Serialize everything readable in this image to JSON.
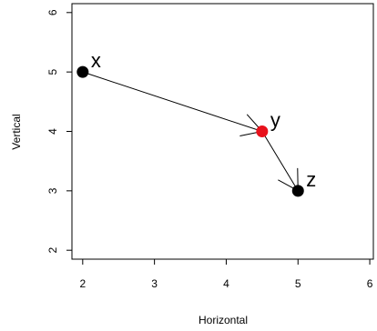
{
  "chart_data": {
    "type": "scatter",
    "xlabel": "Horizontal",
    "ylabel": "Vertical",
    "xlim": [
      1.85,
      6.05
    ],
    "ylim": [
      1.85,
      6.15
    ],
    "xticks": [
      2,
      3,
      4,
      5,
      6
    ],
    "yticks": [
      2,
      3,
      4,
      5,
      6
    ],
    "grid": false,
    "points": [
      {
        "label": "x",
        "x": 2.0,
        "y": 5.0,
        "color": "#000000"
      },
      {
        "label": "y",
        "x": 4.5,
        "y": 4.0,
        "color": "#e8111b"
      },
      {
        "label": "z",
        "x": 5.0,
        "y": 3.0,
        "color": "#000000"
      }
    ],
    "arrows": [
      {
        "from": "x",
        "to": "y"
      },
      {
        "from": "y",
        "to": "z"
      }
    ]
  }
}
